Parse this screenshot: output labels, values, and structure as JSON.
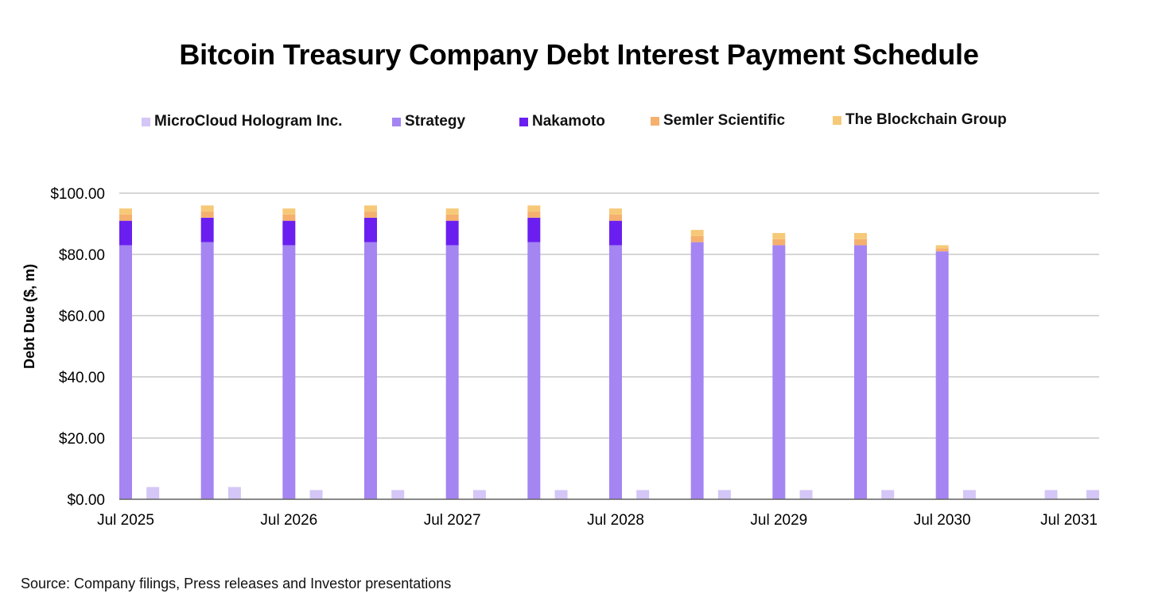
{
  "title": "Bitcoin Treasury Company Debt Interest Payment Schedule",
  "source": "Source: Company filings, Press releases and Investor presentations",
  "colors": {
    "microcloud": "#d4c6f7",
    "strategy": "#a485f2",
    "nakamoto": "#6a1ff0",
    "semler": "#f5b06e",
    "blockchain": "#f6c978",
    "grid": "#bdbdbd",
    "axis": "#666666"
  },
  "chart_data": {
    "type": "bar",
    "stacked": true,
    "title": "Bitcoin Treasury Company Debt Interest Payment Schedule",
    "xlabel": "",
    "ylabel": "Debt Due ($, m)",
    "ylim": [
      0,
      100
    ],
    "y_ticks": [
      "$100.00",
      "$80.00",
      "$60.00",
      "$40.00",
      "$20.00",
      "$0.00"
    ],
    "y_tick_values": [
      100,
      80,
      60,
      40,
      20,
      0
    ],
    "x_ticks": [
      "Jul 2025",
      "Jul 2026",
      "Jul 2027",
      "Jul 2028",
      "Jul 2029",
      "Jul 2030",
      "Jul 2031"
    ],
    "x_tick_index": [
      0,
      12,
      24,
      36,
      48,
      60,
      72
    ],
    "legend": [
      {
        "key": "microcloud",
        "label": "MicroCloud Hologram Inc."
      },
      {
        "key": "strategy",
        "label": "Strategy"
      },
      {
        "key": "nakamoto",
        "label": "Nakamoto"
      },
      {
        "key": "semler",
        "label": "Semler Scientific"
      },
      {
        "key": "blockchain",
        "label": "The Blockchain Group"
      }
    ],
    "legend_position": "top",
    "months": 73,
    "series": [
      {
        "name": "Strategy",
        "key": "strategy",
        "points": [
          [
            0,
            83
          ],
          [
            6,
            84
          ],
          [
            12,
            83
          ],
          [
            18,
            84
          ],
          [
            24,
            83
          ],
          [
            30,
            84
          ],
          [
            36,
            83
          ],
          [
            42,
            84
          ],
          [
            48,
            83
          ],
          [
            54,
            83
          ],
          [
            60,
            81
          ]
        ]
      },
      {
        "name": "Nakamoto",
        "key": "nakamoto",
        "points": [
          [
            0,
            8
          ],
          [
            6,
            8
          ],
          [
            12,
            8
          ],
          [
            18,
            8
          ],
          [
            24,
            8
          ],
          [
            30,
            8
          ],
          [
            36,
            8
          ]
        ]
      },
      {
        "name": "Semler Scientific",
        "key": "semler",
        "points": [
          [
            0,
            2
          ],
          [
            6,
            2
          ],
          [
            12,
            2
          ],
          [
            18,
            2
          ],
          [
            24,
            2
          ],
          [
            30,
            2
          ],
          [
            36,
            2
          ],
          [
            42,
            2
          ],
          [
            48,
            2
          ],
          [
            54,
            2
          ],
          [
            60,
            1
          ]
        ]
      },
      {
        "name": "The Blockchain Group",
        "key": "blockchain",
        "points": [
          [
            0,
            2
          ],
          [
            6,
            2
          ],
          [
            12,
            2
          ],
          [
            18,
            2
          ],
          [
            24,
            2
          ],
          [
            30,
            2
          ],
          [
            36,
            2
          ],
          [
            42,
            2
          ],
          [
            48,
            2
          ],
          [
            54,
            2
          ],
          [
            60,
            1
          ]
        ]
      },
      {
        "name": "MicroCloud Hologram Inc.",
        "key": "microcloud",
        "points": [
          [
            2,
            4
          ],
          [
            8,
            4
          ],
          [
            14,
            3
          ],
          [
            20,
            3
          ],
          [
            26,
            3
          ],
          [
            32,
            3
          ],
          [
            38,
            3
          ],
          [
            44,
            3
          ],
          [
            50,
            3
          ],
          [
            56,
            3
          ],
          [
            62,
            3
          ],
          [
            68,
            3
          ],
          [
            72,
            3
          ]
        ]
      }
    ]
  }
}
